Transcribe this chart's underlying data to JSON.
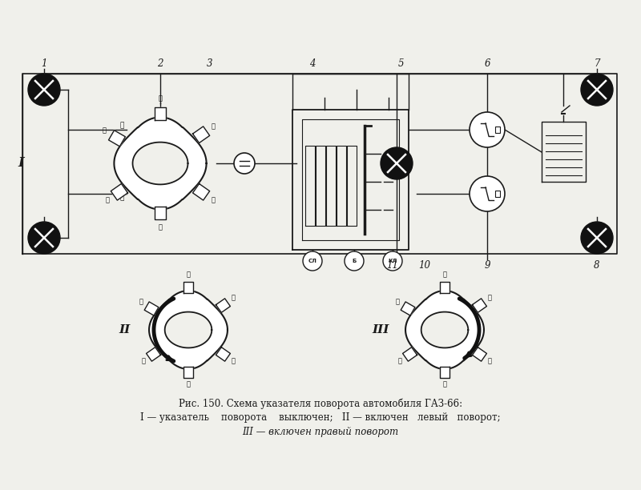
{
  "bg_color": "#f0f0eb",
  "line_color": "#1a1a1a",
  "title_line1": "Рис. 150. Схема указателя поворота автомобиля ГАЗ-66:",
  "title_line2": "I — указатель    поворота    выключен;   II — включен   левый   поворот;",
  "title_line3": "III — включен правый поворот",
  "label_I": "I",
  "label_II": "II",
  "label_III": "III",
  "num_labels_top": [
    "1",
    "2",
    "3",
    "4",
    "5",
    "6",
    "7"
  ],
  "num_labels_bottom": [
    "11",
    "10",
    "9",
    "8"
  ],
  "fig_width": 8.0,
  "fig_height": 6.12
}
